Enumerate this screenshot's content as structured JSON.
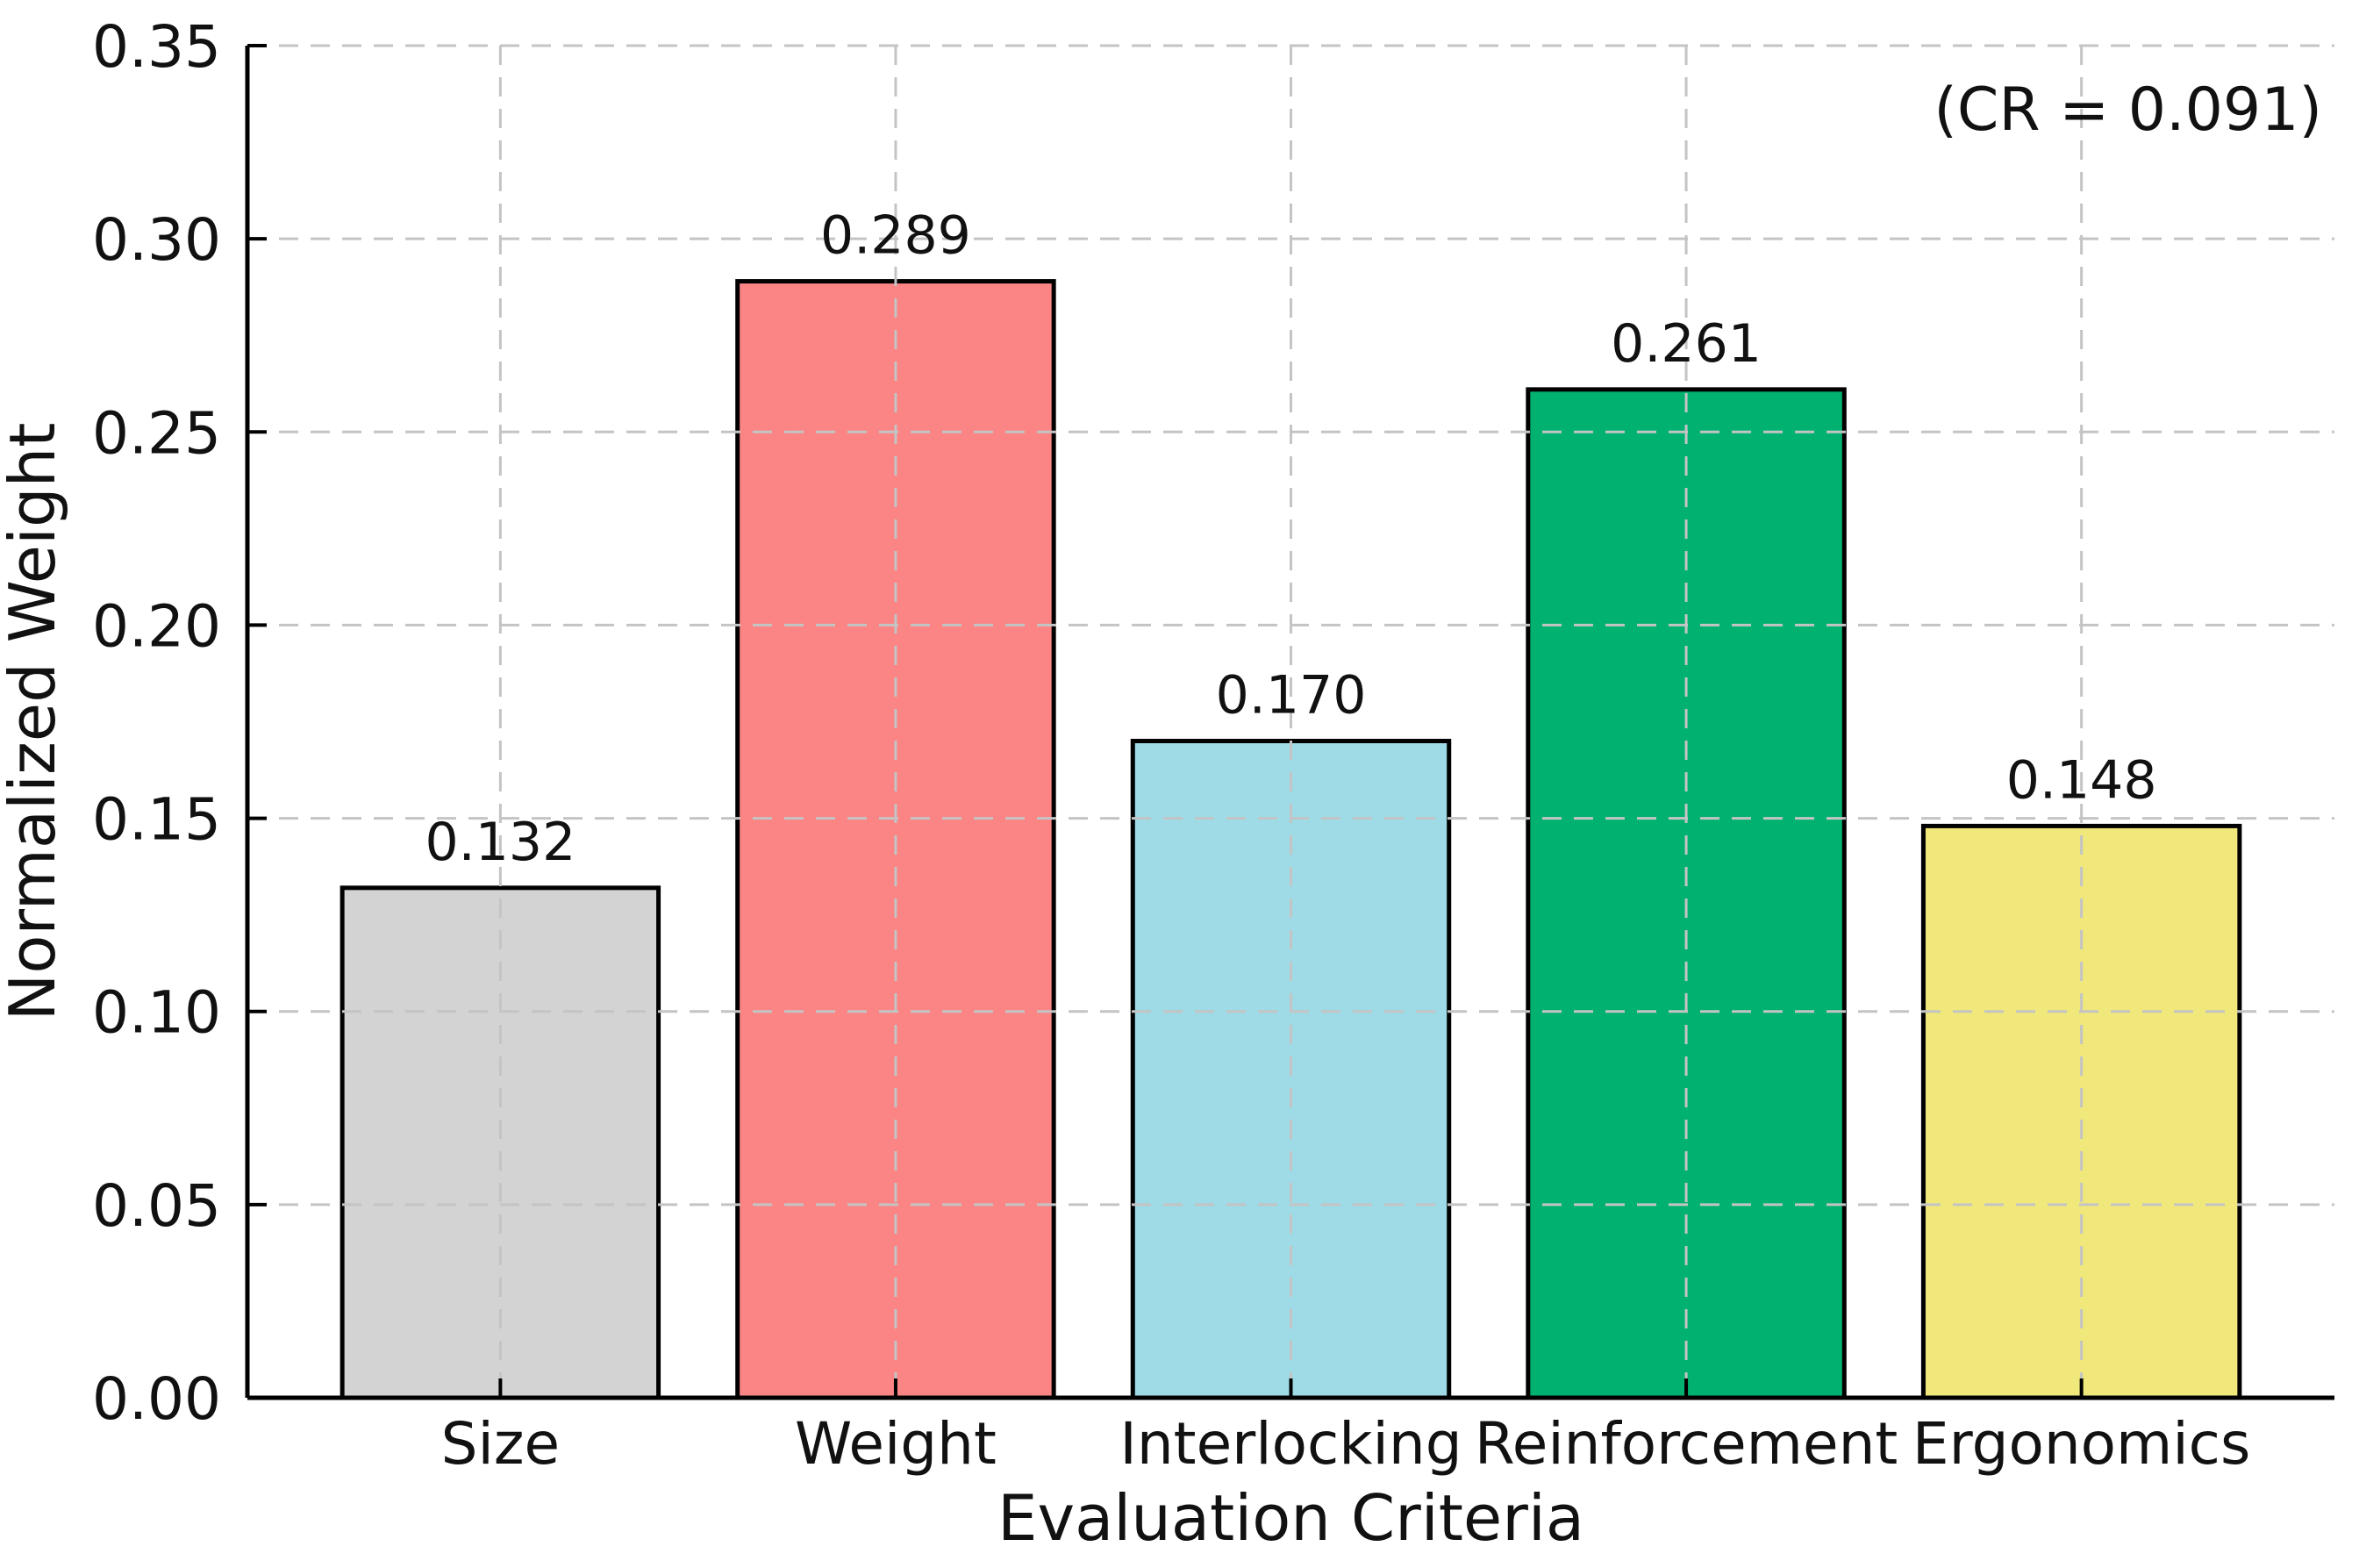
{
  "chart_data": {
    "type": "bar",
    "title": "",
    "xlabel": "Evaluation Criteria",
    "ylabel": "Normalized Weight",
    "annotation": "(CR = 0.091)",
    "categories": [
      "Size",
      "Weight",
      "Interlocking",
      "Reinforcement",
      "Ergonomics"
    ],
    "values": [
      0.132,
      0.289,
      0.17,
      0.261,
      0.148
    ],
    "bar_labels": [
      "0.132",
      "0.289",
      "0.170",
      "0.261",
      "0.148"
    ],
    "bar_colors": [
      "#d3d3d3",
      "#fb8585",
      "#9edbe6",
      "#00b170",
      "#f0e87a"
    ],
    "bar_edge_color": "#000000",
    "ylim": [
      0.0,
      0.35
    ],
    "ytick_step": 0.05,
    "ytick_labels": [
      "0.00",
      "0.05",
      "0.10",
      "0.15",
      "0.20",
      "0.25",
      "0.30",
      "0.35"
    ],
    "grid": "dashed",
    "grid_color": "#c4c4c4",
    "axis_color": "#000000",
    "text_color": "#111111"
  }
}
